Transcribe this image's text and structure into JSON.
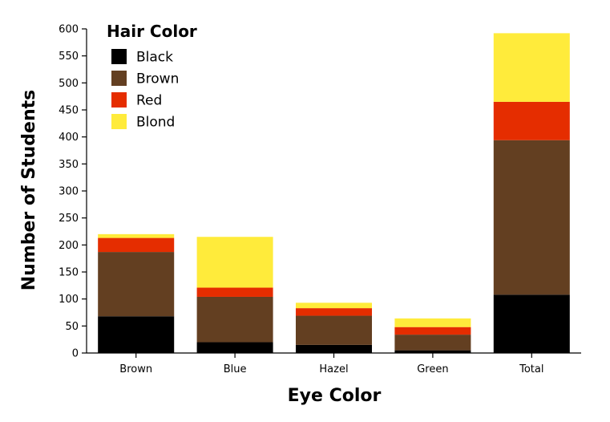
{
  "chart_data": {
    "type": "bar",
    "stacked": true,
    "categories": [
      "Brown",
      "Blue",
      "Hazel",
      "Green",
      "Total"
    ],
    "series": [
      {
        "name": "Black",
        "color": "#000000",
        "values": [
          68,
          20,
          15,
          5,
          108
        ]
      },
      {
        "name": "Brown",
        "color": "#633f21",
        "values": [
          119,
          84,
          54,
          29,
          286
        ]
      },
      {
        "name": "Red",
        "color": "#e52d00",
        "values": [
          26,
          17,
          14,
          14,
          71
        ]
      },
      {
        "name": "Blond",
        "color": "#ffeb3b",
        "values": [
          7,
          94,
          10,
          16,
          127
        ]
      }
    ],
    "xlabel": "Eye Color",
    "ylabel": "Number of Students",
    "ylim": [
      0,
      600
    ],
    "yticks": [
      0,
      50,
      100,
      150,
      200,
      250,
      300,
      350,
      400,
      450,
      500,
      550,
      600
    ],
    "legend": {
      "title": "Hair Color",
      "placement": "top-left"
    },
    "grid": false
  }
}
